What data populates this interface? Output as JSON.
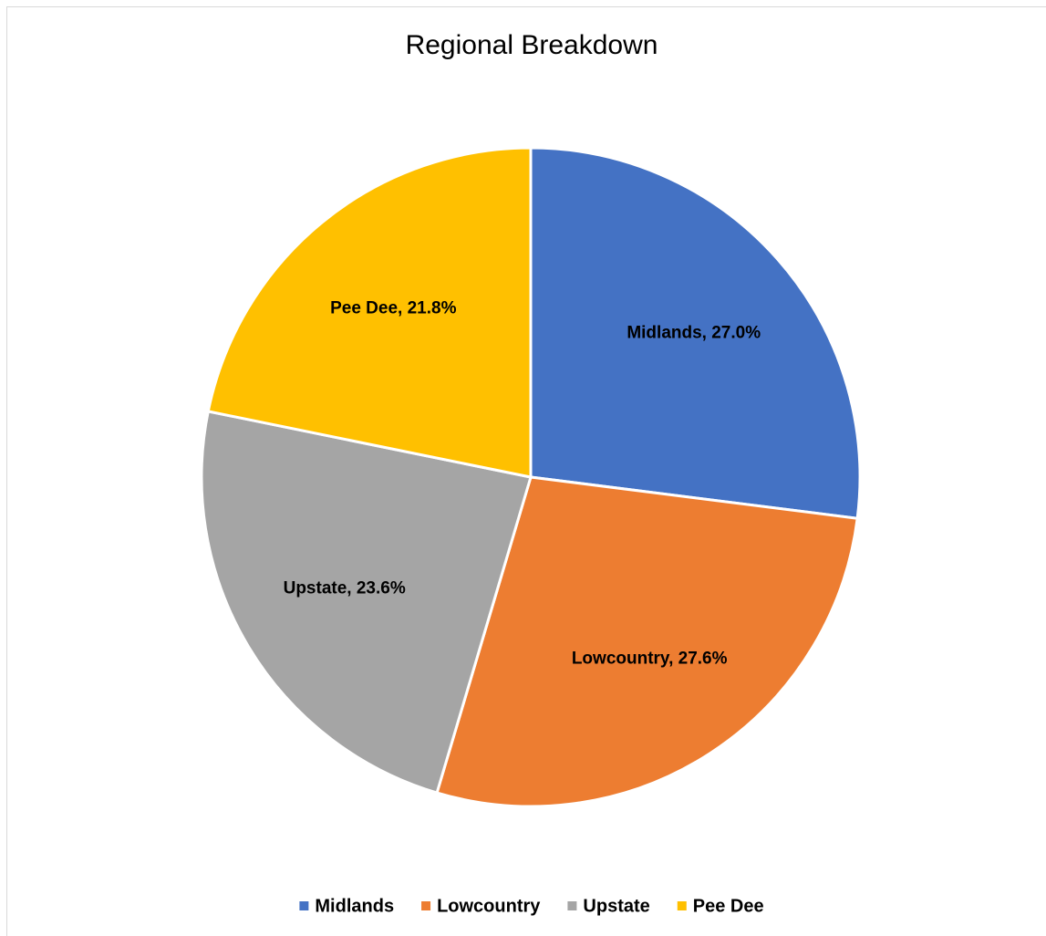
{
  "chart_data": {
    "type": "pie",
    "title": "Regional Breakdown",
    "categories": [
      "Midlands",
      "Lowcountry",
      "Upstate",
      "Pee Dee"
    ],
    "values": [
      27.0,
      27.6,
      23.6,
      21.8
    ],
    "value_labels": [
      "Midlands, 27.0%",
      "Lowcountry, 27.6%",
      "Upstate, 23.6%",
      "Pee Dee, 21.8%"
    ],
    "colors": [
      "#4472c4",
      "#ed7d31",
      "#a5a5a5",
      "#ffc000"
    ],
    "legend": "bottom"
  }
}
